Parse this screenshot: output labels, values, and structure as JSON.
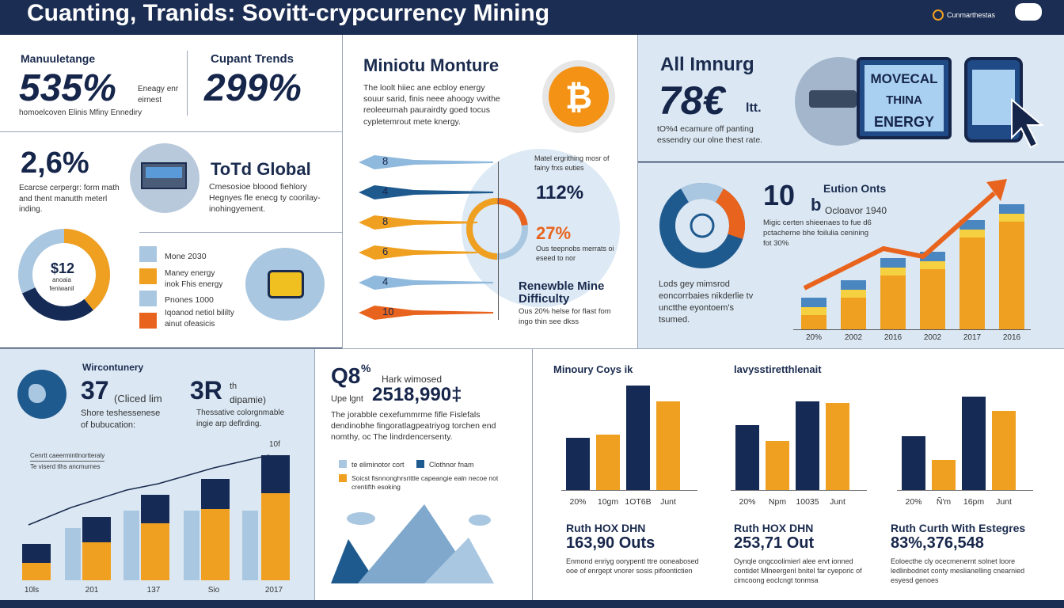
{
  "header": {
    "title": "Cuanting, Tranids: Sovitt-crypcurrency Mining",
    "brand": "Cunmarthestas"
  },
  "panel1": {
    "left_label": "Manuuletange",
    "left_value": "535%",
    "left_side": "Eneagy enr eirnest",
    "left_sub": "homoelcoven Elinis Mfiny Ennediry",
    "right_label": "Cupant Trends",
    "right_value": "299%"
  },
  "panel2": {
    "value": "2,6%",
    "desc": "Ecarcse cerpergr: form math and thent manutth meterl inding.",
    "title": "ToTd Global",
    "sub": "Cmesosioe bloood fiehlory Hegnyes fle enecg ty coorilay-inohingyement."
  },
  "donut_small": {
    "value": "$12",
    "sub": "anoaia feniwanil"
  },
  "legend1": [
    {
      "label": "Mone 2030",
      "color": "#a9c7e0"
    },
    {
      "label": "Maney energy inok Fhis energy",
      "color": "#f0a020"
    },
    {
      "label": "Pnones 1000",
      "color": "#a9c7e0"
    },
    {
      "label": "Iqoanod netiol bililty ainut ofeasicis",
      "color": "#e8641e"
    }
  ],
  "center": {
    "title": "Miniotu Monture",
    "desc": "The loolt hiiec ane ecbloy energy souur sarid, finis neee ahoogy vwithe reoleeurnah paurairdty goed tocus cypletemrout mete knergy.",
    "note": "Matel ergrithing mosr of fainy frxs euties",
    "stat1": "112%",
    "stat2": "27%",
    "stat2_sub": "Ous teepnobs merrats oi eseed to nor",
    "title2": "Renewble Mine Difficulty",
    "sub2": "Ous 20% helse for flast fom ingo thin see dkss",
    "arrows": [
      "8",
      "4",
      "8",
      "6",
      "4",
      "10"
    ]
  },
  "topright": {
    "title": "All Imnurg",
    "value": "78€",
    "value_suffix": "ltt.",
    "desc": "tO%4 ecamure off panting essendry our olne thest rate.",
    "sign": [
      "MOVECAL",
      "THINA",
      "ENERGY"
    ]
  },
  "midright": {
    "value": "10",
    "value_b": "b",
    "title": "Eution Onts",
    "sub": "Ocloavor 1940",
    "desc": "Migic certen shieenaes to fue d6 pctacherne bhe foilulia cenining fot 30%",
    "desc2": "Lods gey mimsrod eoncorrbaies nikderlie tv unctthe eyontoem's tsumed.",
    "xlabels": [
      "20%",
      "2002",
      "2016",
      "2002",
      "2017",
      "2016"
    ]
  },
  "bottom_left": {
    "header": "Wircontunery",
    "stat1": "37",
    "stat1_sub": "(Cliced lim",
    "stat1_desc": "Shore teshessenese of bubucation:",
    "stat2": "3R",
    "stat2_suffix": "th",
    "stat2_sub": "dipamie)",
    "stat2_desc": "Thessative colorgnmable ingie arp deflrding.",
    "legend_a": "Cenrtt caeermintlnortteraly",
    "legend_b": "Te viserd tlhs ancmurnes",
    "top_label": "10f",
    "xlabels": [
      "10ls",
      "201",
      "137",
      "Sio",
      "2017"
    ]
  },
  "bottom_center": {
    "value1": "Q8",
    "value1_suffix": "%",
    "side": "Hark wimosed",
    "value2_pre": "Upe lgnt",
    "value2": "2518,990‡",
    "desc": "The jorabble cexefummrme fifle Fislefals dendinobhe fingoratlagpeatriyog torchen end nomthy, oc The lindrdencersenty.",
    "legend": [
      {
        "label": "te eliminotor cort",
        "color": "#a9c7e0"
      },
      {
        "label": "Clothnor fnam",
        "color": "#1f5a8f"
      },
      {
        "label": "Soicst fisnnonghrsrittle capeangie ealn necoe not crentifth esoking",
        "color": "#f0a020"
      }
    ]
  },
  "bottom_charts": [
    {
      "title": "Minoury Coys ik",
      "xlabels": [
        "20%",
        "10gm",
        "1OT6B",
        "Junt"
      ],
      "stat_title": "Ruth HOX DHN",
      "stat_value": "163,90 Outs",
      "desc": "Enmond enriyg oorypentl ttre ooneabosed ooe of enrgept vnorer sosis pifoontictien"
    },
    {
      "title": "lavysstiretthlenait",
      "xlabels": [
        "20%",
        "Npm",
        "10035",
        "Junt"
      ],
      "stat_title": "Ruth HOX DHN",
      "stat_value": "253,71 Out",
      "desc": "Oynqle ongcoolimierl alee ervt ionned contidet Mlneergenl bnitel far cyeporic of cimcoong eoclcngt tonmsa"
    },
    {
      "title": "",
      "xlabels": [
        "20%",
        "Ñ'm",
        "16pm",
        "Junt"
      ],
      "stat_title": "Ruth Curth With Estegres",
      "stat_value": "83%,376,548",
      "desc": "Eoloecthe cly ocecmenernt solnet loore ledlinbodriet conty meslianelling cnearnied esyesd genoes"
    }
  ],
  "colors": {
    "navy": "#16254a",
    "orange": "#f0a020",
    "light_blue": "#a9c7e0",
    "panel_blue": "#dbe8f4",
    "accent_orange": "#e8641e"
  }
}
